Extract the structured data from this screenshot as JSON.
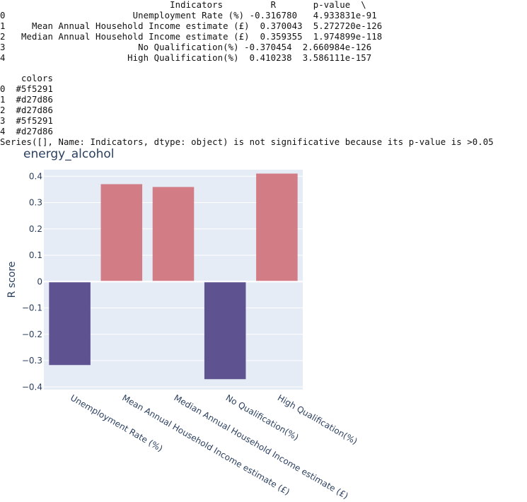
{
  "console": {
    "df_header": "                                Indicators         R       p-value  \\",
    "df_rows": [
      "0                        Unemployment Rate (%) -0.316780   4.933831e-91",
      "1     Mean Annual Household Income estimate (£)  0.370043  5.272720e-126",
      "2   Median Annual Household Income estimate (£)  0.359355  1.974899e-118",
      "3                         No Qualification(%) -0.370454  2.660984e-126",
      "4                       High Qualification(%)  0.410238  3.586111e-157"
    ],
    "colors_header": "    colors",
    "colors_rows": [
      "0  #5f5291",
      "1  #d27d86",
      "2  #d27d86",
      "3  #5f5291",
      "4  #d27d86"
    ],
    "message": "Series([], Name: Indicators, dtype: object) is not significative because its p-value is >0.05"
  },
  "chart_data": {
    "type": "bar",
    "title": "energy_alcohol",
    "xlabel": "",
    "ylabel": "R score",
    "categories": [
      "Unemployment Rate (%)",
      "Mean Annual Household Income estimate (£)",
      "Median Annual Household Income estimate (£)",
      "No Qualification(%)",
      "High Qualification(%)"
    ],
    "values": [
      -0.31678,
      0.370043,
      0.359355,
      -0.370454,
      0.410238
    ],
    "colors": [
      "#5f5291",
      "#d27d86",
      "#d27d86",
      "#5f5291",
      "#d27d86"
    ],
    "ylim": [
      -0.41,
      0.425
    ],
    "yticks": [
      0.4,
      0.3,
      0.2,
      0.1,
      0,
      -0.1,
      -0.2,
      -0.3,
      -0.4
    ],
    "ytick_labels": [
      "0.4",
      "0.3",
      "0.2",
      "0.1",
      "0",
      "−0.1",
      "−0.2",
      "−0.3",
      "−0.4"
    ],
    "grid": true,
    "plot_bg": "#e5ecf6"
  }
}
